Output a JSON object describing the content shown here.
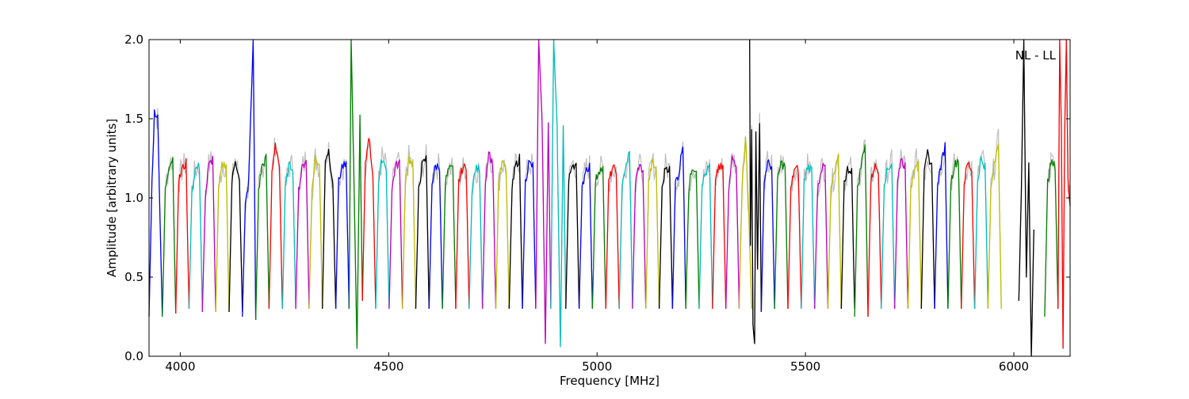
{
  "chart_data": {
    "type": "line",
    "title": "",
    "annotation": "NL - LL",
    "xlabel": "Frequency [MHz]",
    "ylabel": "Amplitude [arbitrary units]",
    "xlim": [
      3925,
      6135
    ],
    "ylim": [
      0.0,
      2.0
    ],
    "x_ticks": [
      4000,
      4500,
      5000,
      5500,
      6000
    ],
    "y_ticks": [
      0.0,
      0.5,
      1.0,
      1.5,
      2.0
    ],
    "x_tick_labels": [
      "4000",
      "4500",
      "5000",
      "5500",
      "6000"
    ],
    "y_tick_labels": [
      "0.0",
      "0.5",
      "1.0",
      "1.5",
      "2.0"
    ],
    "grid": false,
    "legend": "none",
    "channel_width_mhz": 32,
    "color_cycle": [
      "#0000ff",
      "#008000",
      "#ff0000",
      "#00bfbf",
      "#bf00bf",
      "#bfbf00",
      "#000000"
    ],
    "raw_trace_color": "#bfbfbf",
    "series": [
      {
        "name": "",
        "color": "#0000ff",
        "x": [
          3925,
          3932,
          3938,
          3946,
          3952,
          3957
        ],
        "y": [
          0.25,
          1.1,
          1.55,
          1.5,
          0.8,
          0.25
        ]
      },
      {
        "name": "",
        "color": "#008000",
        "x": [
          3957,
          3964,
          3972,
          3982,
          3989
        ],
        "y": [
          0.25,
          1.05,
          1.2,
          1.25,
          0.27
        ]
      },
      {
        "name": "",
        "color": "#ff0000",
        "x": [
          3989,
          3996,
          4004,
          4014,
          4021
        ],
        "y": [
          0.27,
          1.1,
          1.18,
          1.22,
          0.3
        ]
      },
      {
        "name": "",
        "color": "#00bfbf",
        "x": [
          4021,
          4028,
          4036,
          4046,
          4053
        ],
        "y": [
          0.3,
          1.05,
          1.18,
          1.2,
          0.28
        ]
      },
      {
        "name": "",
        "color": "#bf00bf",
        "x": [
          4053,
          4060,
          4068,
          4078,
          4085
        ],
        "y": [
          0.28,
          1.0,
          1.2,
          1.25,
          0.28
        ]
      },
      {
        "name": "",
        "color": "#bfbf00",
        "x": [
          4085,
          4092,
          4100,
          4110,
          4117
        ],
        "y": [
          0.28,
          1.05,
          1.2,
          1.22,
          0.28
        ]
      },
      {
        "name": "",
        "color": "#000000",
        "x": [
          4117,
          4124,
          4132,
          4142,
          4149
        ],
        "y": [
          0.28,
          1.1,
          1.25,
          1.1,
          0.28
        ]
      },
      {
        "name": "",
        "color": "#0000ff",
        "x": [
          4149,
          4156,
          4164,
          4175,
          4181
        ],
        "y": [
          0.25,
          0.95,
          1.1,
          2.0,
          0.23
        ]
      },
      {
        "name": "",
        "color": "#008000",
        "x": [
          4181,
          4188,
          4196,
          4206,
          4213
        ],
        "y": [
          0.23,
          1.05,
          1.2,
          1.25,
          0.3
        ]
      },
      {
        "name": "",
        "color": "#ff0000",
        "x": [
          4213,
          4220,
          4228,
          4238,
          4245
        ],
        "y": [
          0.3,
          1.15,
          1.35,
          1.2,
          0.3
        ]
      },
      {
        "name": "",
        "color": "#00bfbf",
        "x": [
          4245,
          4252,
          4260,
          4270,
          4277
        ],
        "y": [
          0.3,
          1.05,
          1.2,
          1.2,
          0.3
        ]
      },
      {
        "name": "",
        "color": "#bf00bf",
        "x": [
          4277,
          4284,
          4292,
          4302,
          4309
        ],
        "y": [
          0.3,
          1.05,
          1.18,
          1.25,
          0.3
        ]
      },
      {
        "name": "",
        "color": "#bfbf00",
        "x": [
          4309,
          4316,
          4324,
          4334,
          4341
        ],
        "y": [
          0.3,
          1.05,
          1.25,
          1.2,
          0.3
        ]
      },
      {
        "name": "",
        "color": "#000000",
        "x": [
          4341,
          4348,
          4356,
          4366,
          4373
        ],
        "y": [
          0.3,
          1.25,
          1.3,
          1.1,
          0.3
        ]
      },
      {
        "name": "",
        "color": "#0000ff",
        "x": [
          4373,
          4380,
          4388,
          4398,
          4405
        ],
        "y": [
          0.3,
          1.1,
          1.2,
          1.2,
          0.3
        ]
      },
      {
        "name": "",
        "color": "#008000",
        "x": [
          4405,
          4410,
          4416,
          4424,
          4431,
          4437
        ],
        "y": [
          0.3,
          2.0,
          1.2,
          0.05,
          1.5,
          0.35
        ]
      },
      {
        "name": "",
        "color": "#ff0000",
        "x": [
          4437,
          4444,
          4452,
          4462,
          4469
        ],
        "y": [
          0.35,
          1.2,
          1.4,
          1.15,
          0.3
        ]
      },
      {
        "name": "",
        "color": "#00bfbf",
        "x": [
          4469,
          4476,
          4484,
          4494,
          4501
        ],
        "y": [
          0.3,
          1.1,
          1.25,
          1.2,
          0.3
        ]
      },
      {
        "name": "",
        "color": "#bf00bf",
        "x": [
          4501,
          4508,
          4516,
          4526,
          4533
        ],
        "y": [
          0.3,
          1.05,
          1.2,
          1.22,
          0.3
        ]
      },
      {
        "name": "",
        "color": "#bfbf00",
        "x": [
          4533,
          4540,
          4548,
          4558,
          4565
        ],
        "y": [
          0.3,
          1.1,
          1.25,
          1.2,
          0.3
        ]
      },
      {
        "name": "",
        "color": "#000000",
        "x": [
          4565,
          4572,
          4580,
          4590,
          4597
        ],
        "y": [
          0.3,
          1.05,
          1.2,
          1.25,
          0.3
        ]
      },
      {
        "name": "",
        "color": "#0000ff",
        "x": [
          4597,
          4604,
          4612,
          4622,
          4629
        ],
        "y": [
          0.3,
          1.1,
          1.2,
          1.2,
          0.3
        ]
      },
      {
        "name": "",
        "color": "#008000",
        "x": [
          4629,
          4636,
          4644,
          4654,
          4661
        ],
        "y": [
          0.3,
          1.1,
          1.18,
          1.18,
          0.3
        ]
      },
      {
        "name": "",
        "color": "#ff0000",
        "x": [
          4661,
          4668,
          4676,
          4686,
          4693
        ],
        "y": [
          0.3,
          1.1,
          1.18,
          1.2,
          0.3
        ]
      },
      {
        "name": "",
        "color": "#00bfbf",
        "x": [
          4693,
          4700,
          4708,
          4718,
          4725
        ],
        "y": [
          0.3,
          1.05,
          1.18,
          1.18,
          0.3
        ]
      },
      {
        "name": "",
        "color": "#bf00bf",
        "x": [
          4725,
          4732,
          4740,
          4750,
          4757
        ],
        "y": [
          0.3,
          1.1,
          1.3,
          1.2,
          0.3
        ]
      },
      {
        "name": "",
        "color": "#bfbf00",
        "x": [
          4757,
          4764,
          4772,
          4782,
          4789
        ],
        "y": [
          0.3,
          1.1,
          1.22,
          1.18,
          0.3
        ]
      },
      {
        "name": "",
        "color": "#000000",
        "x": [
          4789,
          4796,
          4804,
          4814,
          4821
        ],
        "y": [
          0.3,
          1.05,
          1.2,
          1.25,
          0.3
        ]
      },
      {
        "name": "",
        "color": "#0000ff",
        "x": [
          4821,
          4828,
          4836,
          4846,
          4853
        ],
        "y": [
          0.3,
          1.1,
          1.22,
          1.2,
          0.3
        ]
      },
      {
        "name": "",
        "color": "#bf00bf",
        "x": [
          4853,
          4860,
          4868,
          4876,
          4883,
          4889
        ],
        "y": [
          0.3,
          2.0,
          1.5,
          0.08,
          1.45,
          0.3
        ]
      },
      {
        "name": "",
        "color": "#00bfbf",
        "x": [
          4889,
          4896,
          4904,
          4912,
          4919,
          4925
        ],
        "y": [
          0.3,
          2.0,
          1.45,
          0.06,
          1.45,
          0.3
        ]
      },
      {
        "name": "",
        "color": "#000000",
        "x": [
          4925,
          4932,
          4940,
          4950,
          4957
        ],
        "y": [
          0.3,
          1.1,
          1.22,
          1.2,
          0.3
        ]
      },
      {
        "name": "",
        "color": "#0000ff",
        "x": [
          4957,
          4964,
          4972,
          4982,
          4989
        ],
        "y": [
          0.3,
          1.05,
          1.18,
          1.2,
          0.3
        ]
      },
      {
        "name": "",
        "color": "#008000",
        "x": [
          4989,
          4996,
          5004,
          5014,
          5021
        ],
        "y": [
          0.3,
          1.1,
          1.18,
          1.18,
          0.3
        ]
      },
      {
        "name": "",
        "color": "#ff0000",
        "x": [
          5021,
          5028,
          5036,
          5046,
          5053
        ],
        "y": [
          0.3,
          1.1,
          1.18,
          1.18,
          0.3
        ]
      },
      {
        "name": "",
        "color": "#00bfbf",
        "x": [
          5053,
          5060,
          5068,
          5078,
          5085
        ],
        "y": [
          0.3,
          1.05,
          1.2,
          1.28,
          0.3
        ]
      },
      {
        "name": "",
        "color": "#bf00bf",
        "x": [
          5085,
          5092,
          5100,
          5110,
          5117
        ],
        "y": [
          0.3,
          1.1,
          1.2,
          1.18,
          0.3
        ]
      },
      {
        "name": "",
        "color": "#bfbf00",
        "x": [
          5117,
          5124,
          5132,
          5142,
          5149
        ],
        "y": [
          0.3,
          1.1,
          1.22,
          1.18,
          0.3
        ]
      },
      {
        "name": "",
        "color": "#000000",
        "x": [
          5149,
          5156,
          5164,
          5174,
          5181
        ],
        "y": [
          0.3,
          1.05,
          1.2,
          1.18,
          0.3
        ]
      },
      {
        "name": "",
        "color": "#0000ff",
        "x": [
          5181,
          5188,
          5196,
          5206,
          5213
        ],
        "y": [
          0.3,
          1.1,
          1.15,
          1.35,
          0.3
        ]
      },
      {
        "name": "",
        "color": "#008000",
        "x": [
          5213,
          5220,
          5228,
          5238,
          5245
        ],
        "y": [
          0.3,
          1.05,
          1.2,
          1.18,
          0.3
        ]
      },
      {
        "name": "",
        "color": "#00bfbf",
        "x": [
          5245,
          5252,
          5260,
          5270,
          5277
        ],
        "y": [
          0.3,
          1.1,
          1.15,
          1.2,
          0.3
        ]
      },
      {
        "name": "",
        "color": "#ff0000",
        "x": [
          5277,
          5284,
          5292,
          5302,
          5309
        ],
        "y": [
          0.3,
          1.1,
          1.2,
          1.18,
          0.3
        ]
      },
      {
        "name": "",
        "color": "#bf00bf",
        "x": [
          5309,
          5316,
          5324,
          5334,
          5341
        ],
        "y": [
          0.3,
          1.05,
          1.25,
          1.22,
          0.3
        ]
      },
      {
        "name": "",
        "color": "#bfbf00",
        "x": [
          5341,
          5348,
          5356,
          5364,
          5371
        ],
        "y": [
          0.3,
          1.1,
          1.4,
          0.9,
          0.3
        ]
      },
      {
        "name": "",
        "color": "#000000",
        "x": [
          5366,
          5368,
          5371,
          5374,
          5378,
          5381,
          5385,
          5390,
          5394
        ],
        "y": [
          2.0,
          0.7,
          1.45,
          0.2,
          0.08,
          1.4,
          0.55,
          1.5,
          0.28
        ]
      },
      {
        "name": "",
        "color": "#0000ff",
        "x": [
          5394,
          5401,
          5409,
          5419,
          5426
        ],
        "y": [
          0.28,
          1.1,
          1.22,
          1.2,
          0.3
        ]
      },
      {
        "name": "",
        "color": "#008000",
        "x": [
          5426,
          5433,
          5441,
          5451,
          5458
        ],
        "y": [
          0.3,
          1.1,
          1.22,
          1.2,
          0.3
        ]
      },
      {
        "name": "",
        "color": "#ff0000",
        "x": [
          5458,
          5465,
          5473,
          5483,
          5490
        ],
        "y": [
          0.3,
          1.05,
          1.18,
          1.18,
          0.3
        ]
      },
      {
        "name": "",
        "color": "#00bfbf",
        "x": [
          5490,
          5497,
          5505,
          5515,
          5522
        ],
        "y": [
          0.3,
          1.1,
          1.2,
          1.18,
          0.3
        ]
      },
      {
        "name": "",
        "color": "#bf00bf",
        "x": [
          5522,
          5529,
          5537,
          5547,
          5554
        ],
        "y": [
          0.3,
          1.05,
          1.18,
          1.2,
          0.3
        ]
      },
      {
        "name": "",
        "color": "#bfbf00",
        "x": [
          5554,
          5561,
          5569,
          5579,
          5586
        ],
        "y": [
          0.3,
          1.05,
          1.15,
          1.25,
          0.3
        ]
      },
      {
        "name": "",
        "color": "#000000",
        "x": [
          5586,
          5593,
          5601,
          5611,
          5618
        ],
        "y": [
          0.3,
          1.1,
          1.18,
          1.18,
          0.3
        ]
      },
      {
        "name": "",
        "color": "#008000",
        "x": [
          5618,
          5625,
          5633,
          5643,
          5650
        ],
        "y": [
          0.25,
          1.05,
          1.2,
          1.35,
          0.25
        ]
      },
      {
        "name": "",
        "color": "#ff0000",
        "x": [
          5650,
          5657,
          5665,
          5675,
          5682
        ],
        "y": [
          0.25,
          1.1,
          1.2,
          1.18,
          0.3
        ]
      },
      {
        "name": "",
        "color": "#00bfbf",
        "x": [
          5682,
          5689,
          5697,
          5707,
          5714
        ],
        "y": [
          0.3,
          1.1,
          1.18,
          1.22,
          0.3
        ]
      },
      {
        "name": "",
        "color": "#bf00bf",
        "x": [
          5714,
          5721,
          5729,
          5739,
          5746
        ],
        "y": [
          0.3,
          1.1,
          1.25,
          1.2,
          0.3
        ]
      },
      {
        "name": "",
        "color": "#bfbf00",
        "x": [
          5746,
          5753,
          5761,
          5771,
          5778
        ],
        "y": [
          0.3,
          1.05,
          1.2,
          1.25,
          0.3
        ]
      },
      {
        "name": "",
        "color": "#000000",
        "x": [
          5778,
          5785,
          5793,
          5803,
          5810
        ],
        "y": [
          0.3,
          1.15,
          1.28,
          1.2,
          0.3
        ]
      },
      {
        "name": "",
        "color": "#0000ff",
        "x": [
          5810,
          5817,
          5825,
          5835,
          5842
        ],
        "y": [
          0.3,
          1.1,
          1.2,
          1.33,
          0.3
        ]
      },
      {
        "name": "",
        "color": "#008000",
        "x": [
          5842,
          5849,
          5857,
          5867,
          5874
        ],
        "y": [
          0.3,
          1.1,
          1.2,
          1.25,
          0.3
        ]
      },
      {
        "name": "",
        "color": "#ff0000",
        "x": [
          5874,
          5881,
          5889,
          5899,
          5906
        ],
        "y": [
          0.3,
          1.1,
          1.22,
          1.18,
          0.3
        ]
      },
      {
        "name": "",
        "color": "#00bfbf",
        "x": [
          5906,
          5913,
          5921,
          5931,
          5938
        ],
        "y": [
          0.3,
          1.1,
          1.25,
          1.2,
          0.3
        ]
      },
      {
        "name": "",
        "color": "#bfbf00",
        "x": [
          5938,
          5945,
          5953,
          5963,
          5970
        ],
        "y": [
          0.3,
          1.05,
          1.2,
          1.35,
          0.3
        ]
      },
      {
        "name": "",
        "color": "#000000",
        "x": [
          6012,
          6018,
          6024,
          6030,
          6036,
          6042,
          6048
        ],
        "y": [
          0.35,
          1.05,
          2.0,
          0.5,
          1.2,
          0.0,
          0.8
        ]
      },
      {
        "name": "",
        "color": "#008000",
        "x": [
          6074,
          6081,
          6089,
          6099,
          6106
        ],
        "y": [
          0.25,
          1.1,
          1.22,
          1.2,
          0.3
        ]
      },
      {
        "name": "",
        "color": "#ff0000",
        "x": [
          6106,
          6110,
          6114,
          6118,
          6122,
          6126,
          6130,
          6135
        ],
        "y": [
          0.3,
          2.0,
          1.45,
          0.05,
          1.4,
          2.0,
          1.1,
          0.95
        ]
      }
    ]
  }
}
